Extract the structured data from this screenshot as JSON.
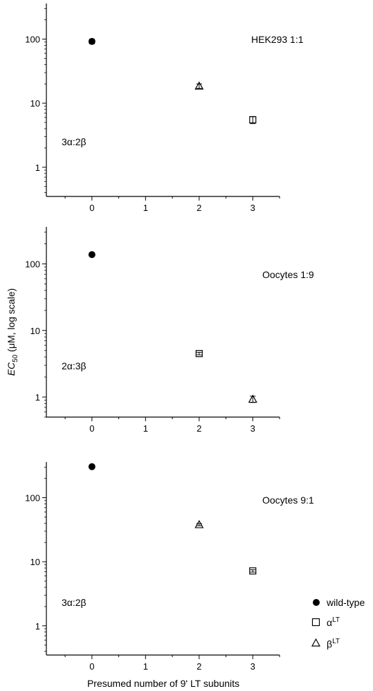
{
  "chart_data": [
    {
      "type": "scatter",
      "yscale": "log",
      "xlim": [
        -0.85,
        3.5
      ],
      "ylim": [
        0.35,
        360
      ],
      "xticks": [
        0,
        1,
        2,
        3
      ],
      "xtick_labels": [
        "0",
        "1",
        "2",
        "3"
      ],
      "yticks": [
        1,
        10,
        100
      ],
      "ytick_labels": [
        "1",
        "10",
        "100"
      ],
      "annotations": [
        "HEK293 1:1",
        "3α:2β"
      ],
      "series": [
        {
          "marker": "filled-circle",
          "points": [
            {
              "x": 0,
              "y": 92,
              "err": 8
            }
          ]
        },
        {
          "marker": "open-triangle",
          "points": [
            {
              "x": 2,
              "y": 18.5,
              "err": 1.5
            }
          ]
        },
        {
          "marker": "open-square",
          "points": [
            {
              "x": 3,
              "y": 5.5,
              "err": 0.7
            }
          ]
        }
      ]
    },
    {
      "type": "scatter",
      "yscale": "log",
      "xlim": [
        -0.85,
        3.5
      ],
      "ylim": [
        0.5,
        360
      ],
      "xticks": [
        0,
        1,
        2,
        3
      ],
      "xtick_labels": [
        "0",
        "1",
        "2",
        "3"
      ],
      "yticks": [
        1,
        10,
        100
      ],
      "ytick_labels": [
        "1",
        "10",
        "100"
      ],
      "annotations": [
        "Oocytes 1:9",
        "2α:3β"
      ],
      "series": [
        {
          "marker": "filled-circle",
          "points": [
            {
              "x": 0,
              "y": 138,
              "err": 6
            }
          ]
        },
        {
          "marker": "open-square",
          "points": [
            {
              "x": 2,
              "y": 4.5,
              "err": 0.2
            }
          ]
        },
        {
          "marker": "open-triangle",
          "points": [
            {
              "x": 3,
              "y": 0.93,
              "err": 0.1
            }
          ]
        }
      ]
    },
    {
      "type": "scatter",
      "yscale": "log",
      "xlim": [
        -0.85,
        3.5
      ],
      "ylim": [
        0.35,
        360
      ],
      "xticks": [
        0,
        1,
        2,
        3
      ],
      "xtick_labels": [
        "0",
        "1",
        "2",
        "3"
      ],
      "yticks": [
        1,
        10,
        100
      ],
      "ytick_labels": [
        "1",
        "10",
        "100"
      ],
      "annotations": [
        "Oocytes 9:1",
        "3α:2β"
      ],
      "series": [
        {
          "marker": "filled-circle",
          "points": [
            {
              "x": 0,
              "y": 305,
              "err": 0
            }
          ]
        },
        {
          "marker": "open-triangle",
          "points": [
            {
              "x": 2,
              "y": 38,
              "err": 1.5
            }
          ]
        },
        {
          "marker": "open-square",
          "points": [
            {
              "x": 3,
              "y": 7.2,
              "err": 0.3
            }
          ]
        }
      ]
    }
  ],
  "axes": {
    "xlabel": "Presumed number of 9' LT subunits",
    "ylabel_main": "EC",
    "ylabel_sub": "50",
    "ylabel_rest": " (μM, log scale)"
  },
  "legend": [
    {
      "marker": "filled-circle",
      "label": "wild-type"
    },
    {
      "marker": "open-square",
      "label": "α",
      "sup": "LT"
    },
    {
      "marker": "open-triangle",
      "label": "β",
      "sup": "LT"
    }
  ]
}
